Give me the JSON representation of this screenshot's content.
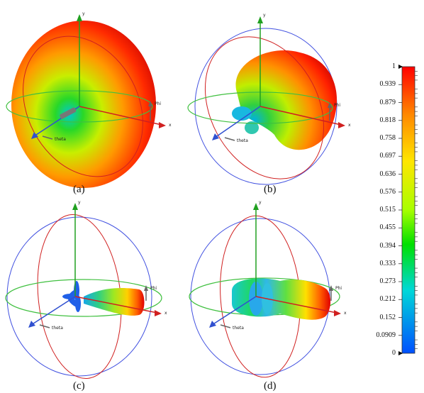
{
  "panels": [
    {
      "id": "a",
      "caption": "(a)",
      "axes": {
        "y": "y",
        "x": "x",
        "phi": "Phi",
        "theta": "theta"
      }
    },
    {
      "id": "b",
      "caption": "(b)",
      "axes": {
        "y": "y",
        "x": "x",
        "phi": "Phi",
        "theta": "theta"
      }
    },
    {
      "id": "c",
      "caption": "(c)",
      "axes": {
        "y": "y",
        "x": "x",
        "phi": "Phi",
        "theta": "theta"
      }
    },
    {
      "id": "d",
      "caption": "(d)",
      "axes": {
        "y": "y",
        "x": "x",
        "phi": "Phi",
        "theta": "theta"
      }
    }
  ],
  "colorbar": {
    "ticks": [
      "1",
      "0.939",
      "0.879",
      "0.818",
      "0.758",
      "0.697",
      "0.636",
      "0.576",
      "0.515",
      "0.455",
      "0.394",
      "0.333",
      "0.273",
      "0.212",
      "0.152",
      "0.0909",
      "0"
    ],
    "colors": [
      "#ff0000",
      "#ff8a00",
      "#ffe600",
      "#a8ff00",
      "#00e000",
      "#00d8d8",
      "#0060ff"
    ]
  }
}
